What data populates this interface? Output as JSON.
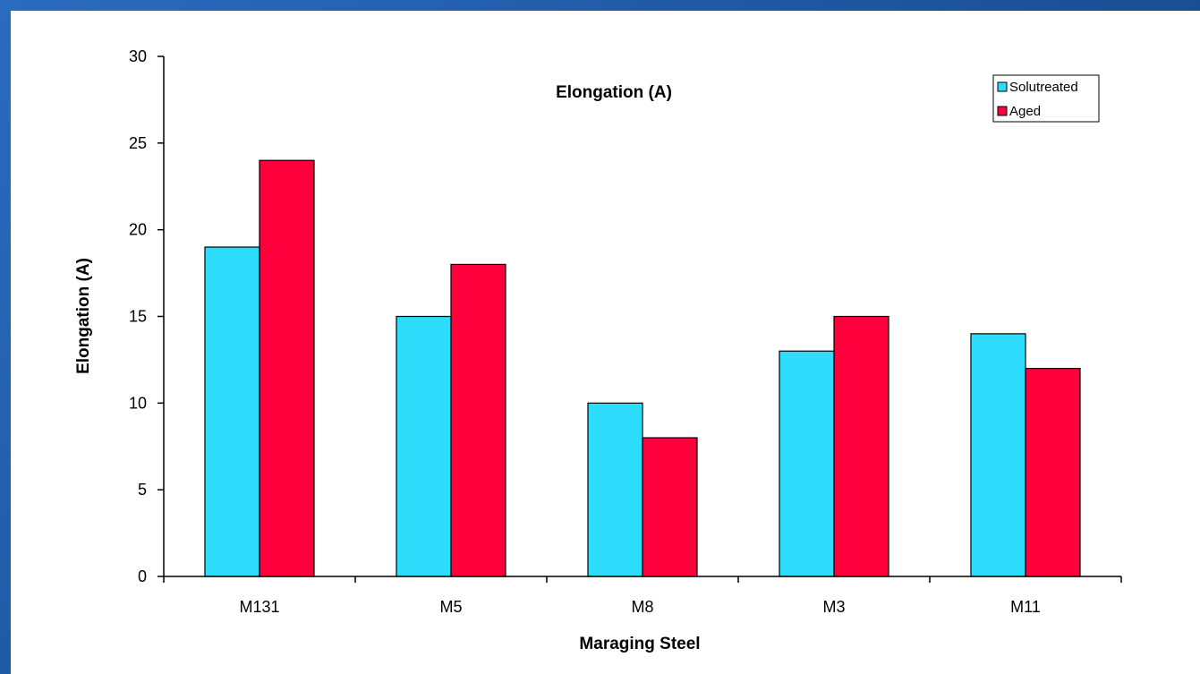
{
  "chart_data": {
    "type": "bar",
    "title": "Elongation (A)",
    "xlabel": "Maraging Steel",
    "ylabel": "Elongation (A)",
    "categories": [
      "M131",
      "M5",
      "M8",
      "M3",
      "M11"
    ],
    "ylim": [
      0,
      30
    ],
    "yticks": [
      0,
      5,
      10,
      15,
      20,
      25,
      30
    ],
    "grid": false,
    "legend_position": "top-right",
    "series": [
      {
        "name": "Solutreated",
        "color": "#2ddcfa",
        "values": [
          19,
          15,
          10,
          13,
          14
        ]
      },
      {
        "name": "Aged",
        "color": "#ff003c",
        "values": [
          24,
          18,
          8,
          15,
          12
        ]
      }
    ]
  }
}
